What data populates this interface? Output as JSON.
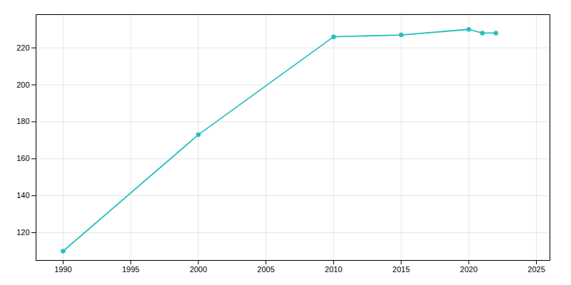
{
  "chart_data": {
    "type": "line",
    "x": [
      1990,
      2000,
      2010,
      2015,
      2020,
      2021,
      2022
    ],
    "values": [
      110,
      173,
      226,
      227,
      230,
      228,
      228
    ],
    "color": "#29bebe",
    "marker": "circle",
    "xlim": [
      1988,
      2026
    ],
    "ylim": [
      105,
      238
    ],
    "xticks": [
      1990,
      1995,
      2000,
      2005,
      2010,
      2015,
      2020,
      2025
    ],
    "yticks": [
      120,
      140,
      160,
      180,
      200,
      220
    ],
    "grid": true
  }
}
